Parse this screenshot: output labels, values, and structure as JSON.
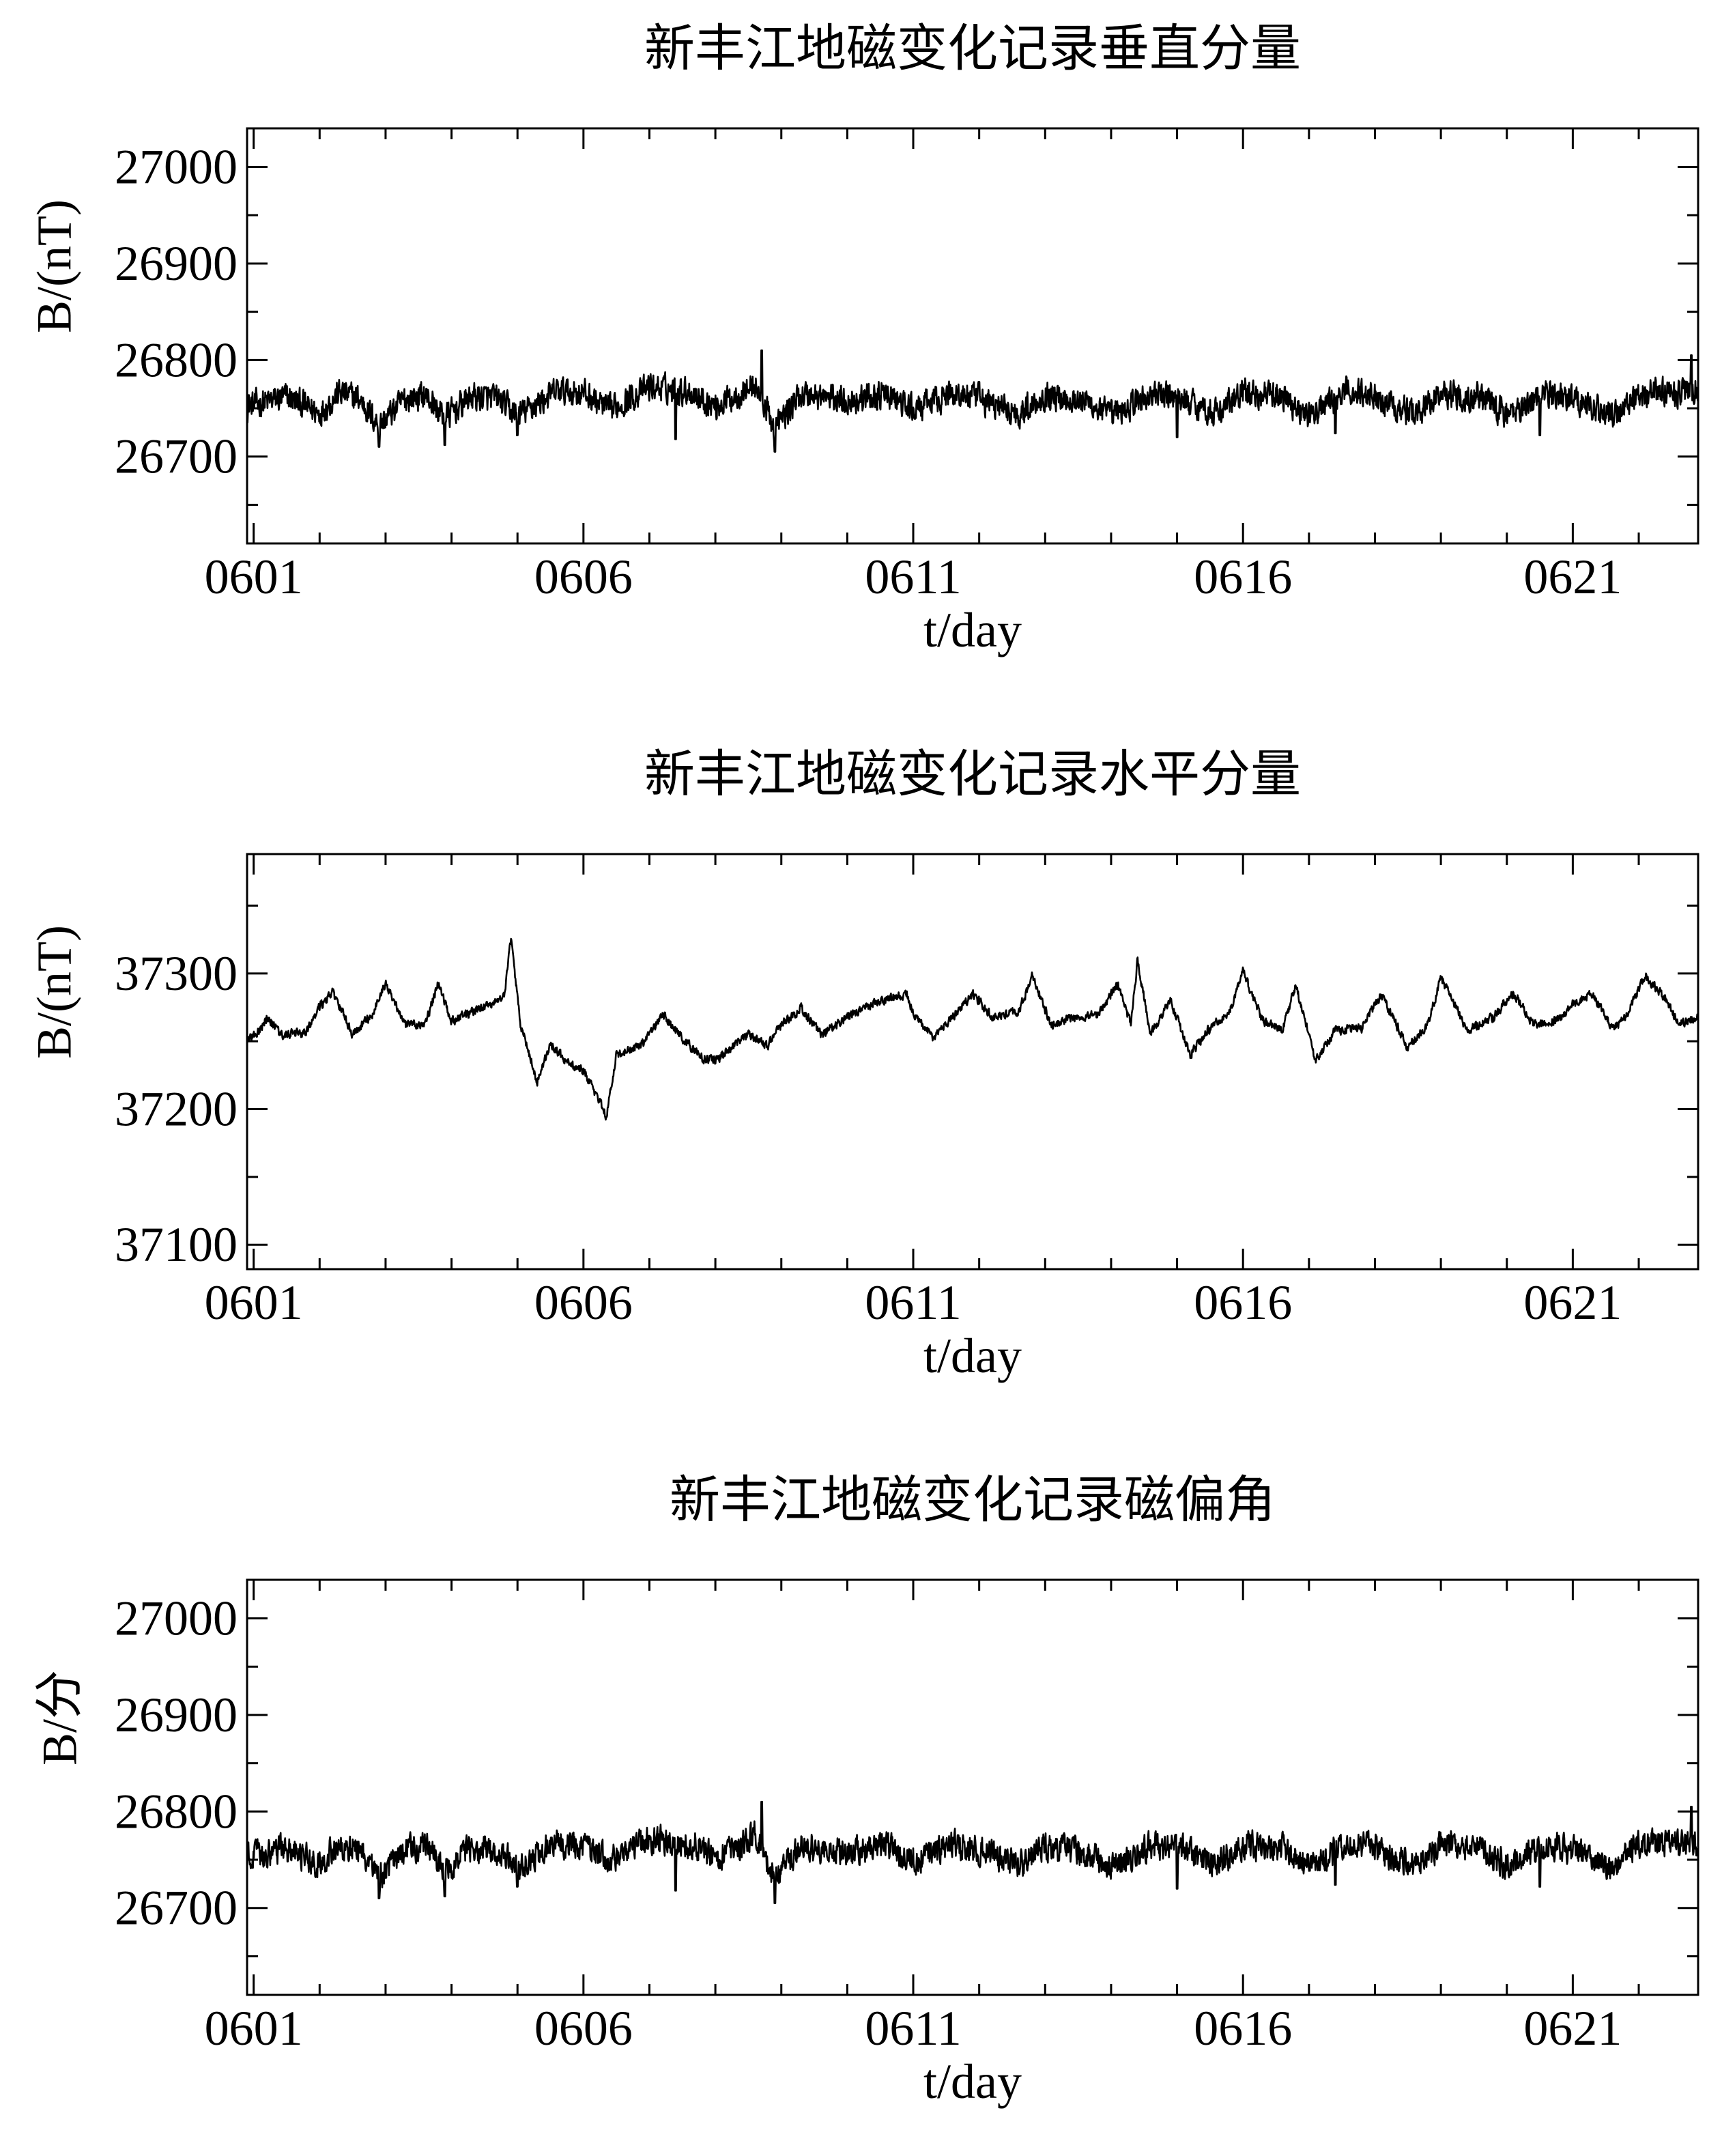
{
  "chart_data": [
    {
      "type": "line",
      "title": "新丰江地磁变化记录垂直分量",
      "xlabel": "t/day",
      "ylabel": "B/(nT)",
      "xlim": [
        0.9,
        22.9
      ],
      "ylim": [
        26610,
        27040
      ],
      "xticks": [
        1,
        6,
        11,
        16,
        21
      ],
      "xtick_labels": [
        "0601",
        "0606",
        "0611",
        "0616",
        "0621"
      ],
      "yticks": [
        26700,
        26800,
        26900,
        27000
      ],
      "ytick_labels": [
        "26700",
        "26800",
        "26900",
        "27000"
      ],
      "series": [
        {
          "name": "垂直分量",
          "base": 26760,
          "noise": 13,
          "x": [
            0.9,
            1.5,
            2.0,
            2.3,
            2.6,
            2.9,
            3.3,
            3.6,
            3.9,
            4.3,
            4.7,
            5.0,
            5.6,
            6.0,
            6.4,
            7.0,
            7.6,
            8.0,
            8.6,
            8.9,
            9.3,
            10.0,
            10.6,
            11.0,
            11.6,
            12.0,
            12.6,
            13.0,
            13.6,
            14.0,
            14.6,
            15.0,
            15.6,
            16.0,
            16.6,
            17.0,
            17.6,
            18.0,
            18.6,
            19.0,
            19.6,
            20.0,
            20.6,
            21.0,
            21.6,
            22.0,
            22.9
          ],
          "values": [
            26752,
            26762,
            26745,
            26766,
            26760,
            26732,
            26760,
            26764,
            26740,
            26762,
            26760,
            26742,
            26768,
            26766,
            26748,
            26772,
            26768,
            26752,
            26774,
            26730,
            26765,
            26758,
            26764,
            26748,
            26766,
            26760,
            26744,
            26764,
            26758,
            26742,
            26764,
            26762,
            26745,
            26766,
            26762,
            26742,
            26768,
            26763,
            26744,
            26766,
            26762,
            26744,
            26765,
            26760,
            26742,
            26766,
            26768
          ]
        }
      ],
      "spikes": [
        {
          "x": 2.9,
          "value": 26710
        },
        {
          "x": 3.9,
          "value": 26712
        },
        {
          "x": 5.0,
          "value": 26722
        },
        {
          "x": 7.4,
          "value": 26718
        },
        {
          "x": 8.7,
          "value": 26810
        },
        {
          "x": 8.9,
          "value": 26705
        },
        {
          "x": 15.0,
          "value": 26720
        },
        {
          "x": 17.4,
          "value": 26724
        },
        {
          "x": 20.5,
          "value": 26722
        },
        {
          "x": 22.8,
          "value": 26805
        }
      ]
    },
    {
      "type": "line",
      "title": "新丰江地磁变化记录水平分量",
      "xlabel": "t/day",
      "ylabel": "B/(nT)",
      "xlim": [
        0.9,
        22.9
      ],
      "ylim": [
        37082,
        37388
      ],
      "xticks": [
        1,
        6,
        11,
        16,
        21
      ],
      "xtick_labels": [
        "0601",
        "0606",
        "0611",
        "0616",
        "0621"
      ],
      "yticks": [
        37100,
        37200,
        37300
      ],
      "ytick_labels": [
        "37100",
        "37200",
        "37300"
      ],
      "series": [
        {
          "name": "水平分量",
          "base": 0,
          "noise": 3,
          "x": [
            0.9,
            1.1,
            1.2,
            1.4,
            1.8,
            2.0,
            2.2,
            2.5,
            2.8,
            3.0,
            3.3,
            3.6,
            3.8,
            4.0,
            4.5,
            4.8,
            4.9,
            5.05,
            5.3,
            5.5,
            5.8,
            6.0,
            6.2,
            6.35,
            6.5,
            6.9,
            7.2,
            7.5,
            7.8,
            8.0,
            8.5,
            8.8,
            9.0,
            9.3,
            9.6,
            10.0,
            10.4,
            10.9,
            11.0,
            11.3,
            11.6,
            11.9,
            12.2,
            12.6,
            12.8,
            13.1,
            13.5,
            13.8,
            14.1,
            14.3,
            14.4,
            14.6,
            14.9,
            15.2,
            15.5,
            15.8,
            16.0,
            16.3,
            16.6,
            16.8,
            17.1,
            17.4,
            17.8,
            18.1,
            18.5,
            18.8,
            19.0,
            19.4,
            19.8,
            20.1,
            20.4,
            20.8,
            21.0,
            21.3,
            21.6,
            21.8,
            22.1,
            22.4,
            22.6,
            22.9
          ],
          "values": [
            37250,
            37258,
            37268,
            37255,
            37256,
            37276,
            37286,
            37255,
            37270,
            37293,
            37262,
            37262,
            37293,
            37265,
            37275,
            37283,
            37325,
            37262,
            37220,
            37248,
            37232,
            37228,
            37210,
            37195,
            37240,
            37248,
            37270,
            37252,
            37238,
            37236,
            37255,
            37247,
            37262,
            37274,
            37255,
            37268,
            37278,
            37285,
            37270,
            37253,
            37268,
            37285,
            37268,
            37272,
            37298,
            37262,
            37268,
            37270,
            37292,
            37262,
            37310,
            37255,
            37280,
            37240,
            37260,
            37272,
            37302,
            37265,
            37258,
            37292,
            37235,
            37258,
            37260,
            37284,
            37245,
            37262,
            37297,
            37258,
            37268,
            37286,
            37262,
            37266,
            37278,
            37285,
            37260,
            37268,
            37298,
            37282,
            37262,
            37268
          ]
        }
      ],
      "spikes": []
    },
    {
      "type": "line",
      "title": "新丰江地磁变化记录磁偏角",
      "xlabel": "t/day",
      "ylabel": "B/分",
      "xlim": [
        0.9,
        22.9
      ],
      "ylim": [
        26610,
        27040
      ],
      "xticks": [
        1,
        6,
        11,
        16,
        21
      ],
      "xtick_labels": [
        "0601",
        "0606",
        "0611",
        "0616",
        "0621"
      ],
      "yticks": [
        26700,
        26800,
        26900,
        27000
      ],
      "ytick_labels": [
        "26700",
        "26800",
        "26900",
        "27000"
      ],
      "series": [
        {
          "name": "磁偏角",
          "base": 26760,
          "noise": 13,
          "x": [
            0.9,
            1.5,
            2.0,
            2.3,
            2.6,
            2.9,
            3.3,
            3.6,
            3.9,
            4.3,
            4.7,
            5.0,
            5.6,
            6.0,
            6.4,
            7.0,
            7.6,
            8.0,
            8.6,
            8.9,
            9.3,
            10.0,
            10.6,
            11.0,
            11.6,
            12.0,
            12.6,
            13.0,
            13.6,
            14.0,
            14.6,
            15.0,
            15.6,
            16.0,
            16.6,
            17.0,
            17.6,
            18.0,
            18.6,
            19.0,
            19.6,
            20.0,
            20.6,
            21.0,
            21.6,
            22.0,
            22.9
          ],
          "values": [
            26752,
            26762,
            26745,
            26766,
            26760,
            26732,
            26760,
            26764,
            26740,
            26762,
            26760,
            26742,
            26768,
            26766,
            26748,
            26772,
            26768,
            26752,
            26774,
            26730,
            26765,
            26758,
            26764,
            26748,
            26766,
            26760,
            26744,
            26764,
            26758,
            26742,
            26764,
            26762,
            26745,
            26766,
            26762,
            26742,
            26768,
            26763,
            26744,
            26766,
            26762,
            26744,
            26765,
            26760,
            26742,
            26766,
            26768
          ]
        }
      ],
      "spikes": [
        {
          "x": 2.9,
          "value": 26710
        },
        {
          "x": 3.9,
          "value": 26712
        },
        {
          "x": 5.0,
          "value": 26722
        },
        {
          "x": 7.4,
          "value": 26718
        },
        {
          "x": 8.7,
          "value": 26810
        },
        {
          "x": 8.9,
          "value": 26705
        },
        {
          "x": 15.0,
          "value": 26720
        },
        {
          "x": 17.4,
          "value": 26724
        },
        {
          "x": 20.5,
          "value": 26722
        },
        {
          "x": 22.8,
          "value": 26805
        }
      ]
    }
  ]
}
